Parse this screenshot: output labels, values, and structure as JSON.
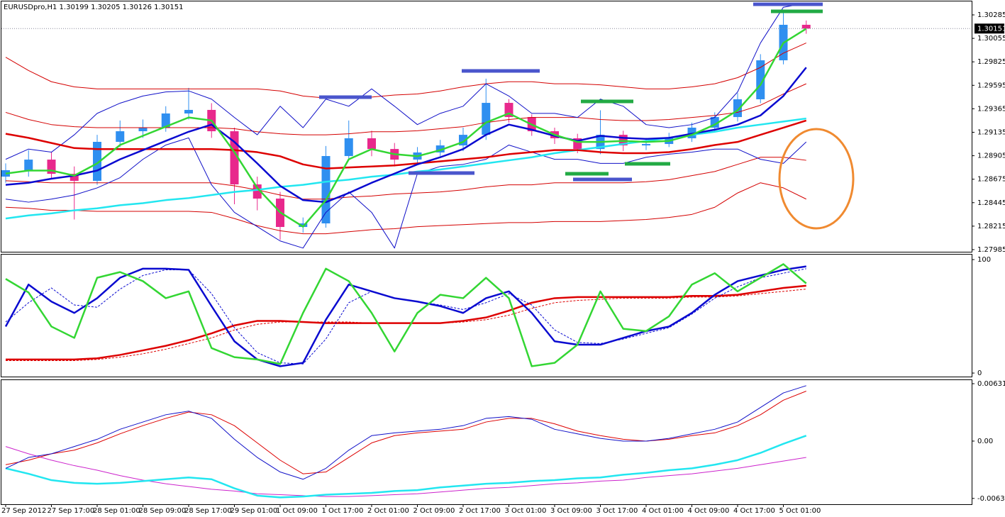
{
  "chart_data": [
    {
      "type": "candlestick",
      "title": "EURUSDpro,H1  1.30199 1.30205 1.30126 1.30151",
      "last_price": 1.30151,
      "categories": [
        "27 Sep 2012",
        null,
        "27 Sep 17:00",
        null,
        "28 Sep 01:00",
        null,
        "28 Sep 09:00",
        null,
        "28 Sep 17:00",
        null,
        "29 Sep 01:00",
        null,
        "1 Oct 09:00",
        null,
        "1 Oct 17:00",
        null,
        "2 Oct 01:00",
        null,
        "2 Oct 09:00",
        null,
        "2 Oct 17:00",
        null,
        "3 Oct 01:00",
        null,
        "3 Oct 09:00",
        null,
        "3 Oct 17:00",
        null,
        "4 Oct 01:00",
        null,
        "4 Oct 09:00",
        null,
        "4 Oct 17:00",
        null,
        "5 Oct 01:00",
        null
      ],
      "open": [
        1.287,
        1.28763,
        1.28867,
        1.28728,
        1.28659,
        1.29041,
        1.29145,
        1.2918,
        1.29319,
        1.29354,
        1.29145,
        1.28624,
        1.28485,
        1.28207,
        1.28242,
        1.28902,
        1.29076,
        1.28971,
        1.28867,
        1.28937,
        1.29006,
        1.2911,
        1.29423,
        1.29284,
        1.29145,
        1.29076,
        1.28971,
        1.2911,
        1.29006,
        1.2902,
        1.29076,
        1.2918,
        1.29284,
        1.29458,
        1.2984,
        1.30188
      ],
      "high": [
        1.2883,
        1.2896,
        1.2894,
        1.288,
        1.2911,
        1.2925,
        1.2926,
        1.2939,
        1.2957,
        1.2942,
        1.2918,
        1.287,
        1.2855,
        1.283,
        1.29,
        1.2925,
        1.2915,
        1.2903,
        1.2899,
        1.2906,
        1.2918,
        1.2966,
        1.2946,
        1.2931,
        1.2918,
        1.2912,
        1.2935,
        1.2915,
        1.2908,
        1.2913,
        1.2923,
        1.2933,
        1.2952,
        1.299,
        1.3033,
        1.3023
      ],
      "low": [
        1.2864,
        1.287,
        1.2868,
        1.2828,
        1.2862,
        1.2899,
        1.2908,
        1.2914,
        1.2926,
        1.2908,
        1.2843,
        1.2837,
        1.2808,
        1.2815,
        1.282,
        1.2886,
        1.289,
        1.288,
        1.2883,
        1.289,
        1.2895,
        1.2906,
        1.2923,
        1.291,
        1.2902,
        1.2893,
        1.2892,
        1.2895,
        1.2896,
        1.2899,
        1.2904,
        1.2914,
        1.2924,
        1.2942,
        1.298,
        1.301
      ],
      "close": [
        1.28763,
        1.28867,
        1.28728,
        1.28659,
        1.29041,
        1.29145,
        1.2918,
        1.29319,
        1.29354,
        1.29145,
        1.28624,
        1.28485,
        1.28207,
        1.28242,
        1.28902,
        1.29076,
        1.28971,
        1.28867,
        1.28937,
        1.29006,
        1.2911,
        1.29423,
        1.29284,
        1.29145,
        1.29076,
        1.28971,
        1.2911,
        1.29006,
        1.2902,
        1.29076,
        1.2918,
        1.29284,
        1.29458,
        1.2984,
        1.30188,
        1.30151
      ],
      "up_color": "#2f8ff0",
      "down_color": "#e8288c",
      "ylim": [
        1.27964,
        1.30417
      ],
      "yticks": [
        1.27985,
        1.28215,
        1.28445,
        1.28675,
        1.28905,
        1.29135,
        1.29365,
        1.29595,
        1.29825,
        1.30055,
        1.30285
      ],
      "series": [
        {
          "color": "#d40000",
          "style": "thin",
          "values": [
            1.2987,
            1.2974,
            1.2963,
            1.2958,
            1.2956,
            1.2956,
            1.2956,
            1.2956,
            1.2956,
            1.2956,
            1.2956,
            1.2956,
            1.2954,
            1.2949,
            1.2947,
            1.2947,
            1.2948,
            1.295,
            1.2951,
            1.2954,
            1.2958,
            1.2961,
            1.2963,
            1.2963,
            1.2961,
            1.2961,
            1.296,
            1.2958,
            1.2956,
            1.2956,
            1.2958,
            1.2961,
            1.2967,
            1.2977,
            1.2991,
            1.3001
          ]
        },
        {
          "color": "#d40000",
          "style": "thin",
          "values": [
            1.2933,
            1.2926,
            1.2921,
            1.2919,
            1.2918,
            1.2918,
            1.2918,
            1.2918,
            1.2918,
            1.2918,
            1.2917,
            1.2914,
            1.2912,
            1.2911,
            1.2911,
            1.2912,
            1.2914,
            1.2914,
            1.2915,
            1.2917,
            1.2919,
            1.2923,
            1.2926,
            1.2928,
            1.2928,
            1.2928,
            1.2926,
            1.2925,
            1.2925,
            1.2926,
            1.2928,
            1.293,
            1.2933,
            1.294,
            1.2951,
            1.2961
          ]
        },
        {
          "color": "#d40000",
          "style": "thin",
          "values": [
            1.2866,
            1.2865,
            1.2864,
            1.2864,
            1.2864,
            1.2864,
            1.2864,
            1.2864,
            1.2864,
            1.2864,
            1.2861,
            1.2857,
            1.2852,
            1.2848,
            1.2848,
            1.285,
            1.2851,
            1.2853,
            1.2854,
            1.2855,
            1.2857,
            1.286,
            1.2862,
            1.2862,
            1.2864,
            1.2864,
            1.2864,
            1.2864,
            1.2865,
            1.2867,
            1.2871,
            1.2875,
            1.2882,
            1.2889,
            1.2889,
            1.2886
          ]
        },
        {
          "color": "#d40000",
          "style": "thin",
          "values": [
            1.284,
            1.2839,
            1.2837,
            1.2837,
            1.2836,
            1.2836,
            1.2836,
            1.2836,
            1.2836,
            1.2835,
            1.2829,
            1.2822,
            1.2817,
            1.2814,
            1.2814,
            1.2816,
            1.2818,
            1.2819,
            1.2821,
            1.2822,
            1.2823,
            1.2824,
            1.2825,
            1.2825,
            1.2826,
            1.2826,
            1.2826,
            1.2827,
            1.2828,
            1.283,
            1.2833,
            1.284,
            1.2854,
            1.2864,
            1.2859,
            1.2848
          ]
        },
        {
          "color": "#1010c8",
          "style": "thin",
          "values": [
            1.2887,
            1.2897,
            1.2894,
            1.2911,
            1.2932,
            1.2942,
            1.2949,
            1.2953,
            1.2954,
            1.2946,
            1.2928,
            1.2911,
            1.2939,
            1.2918,
            1.2946,
            1.2939,
            1.2956,
            1.2939,
            1.2921,
            1.2932,
            1.2939,
            1.2961,
            1.2949,
            1.2932,
            1.2932,
            1.2928,
            1.2946,
            1.2939,
            1.2921,
            1.2918,
            1.2921,
            1.2928,
            1.2953,
            1.3001,
            1.3036,
            1.304
          ]
        },
        {
          "color": "#1010c8",
          "style": "thin",
          "values": [
            1.2848,
            1.2845,
            1.2848,
            1.2852,
            1.2859,
            1.2869,
            1.2887,
            1.2901,
            1.2908,
            1.2862,
            1.2835,
            1.2821,
            1.2807,
            1.28,
            1.2835,
            1.2855,
            1.2835,
            1.28,
            1.2873,
            1.288,
            1.2882,
            1.2887,
            1.2901,
            1.2894,
            1.2887,
            1.2887,
            1.2883,
            1.2883,
            1.2889,
            1.2892,
            1.2894,
            1.2897,
            1.2897,
            1.2887,
            1.2883,
            1.2904
          ]
        },
        {
          "color": "#22e6f0",
          "style": "thick",
          "values": [
            1.2829,
            1.2832,
            1.2834,
            1.2837,
            1.2839,
            1.2842,
            1.2844,
            1.2847,
            1.2849,
            1.2852,
            1.2855,
            1.2857,
            1.286,
            1.2862,
            1.2865,
            1.2867,
            1.287,
            1.2872,
            1.2875,
            1.2877,
            1.288,
            1.2883,
            1.2886,
            1.2889,
            1.2893,
            1.2896,
            1.2899,
            1.2902,
            1.2905,
            1.2908,
            1.2911,
            1.2914,
            1.2918,
            1.2921,
            1.2924,
            1.2927
          ]
        },
        {
          "color": "#dd0000",
          "style": "thick",
          "values": [
            1.2912,
            1.2908,
            1.2903,
            1.2898,
            1.2897,
            1.2897,
            1.2897,
            1.2897,
            1.2897,
            1.2897,
            1.2896,
            1.2894,
            1.289,
            1.2882,
            1.2878,
            1.2879,
            1.288,
            1.2881,
            1.2883,
            1.2885,
            1.2887,
            1.2889,
            1.2892,
            1.2894,
            1.2896,
            1.2896,
            1.2894,
            1.2893,
            1.2893,
            1.2894,
            1.2897,
            1.2901,
            1.2904,
            1.2911,
            1.2918,
            1.2925
          ]
        },
        {
          "color": "#0a0ad0",
          "style": "thick",
          "values": [
            1.2862,
            1.2864,
            1.2868,
            1.2871,
            1.2876,
            1.2887,
            1.2896,
            1.2905,
            1.2914,
            1.2921,
            1.2904,
            1.2883,
            1.2861,
            1.2847,
            1.2845,
            1.2854,
            1.2864,
            1.2873,
            1.2882,
            1.2889,
            1.2897,
            1.2911,
            1.2921,
            1.2916,
            1.291,
            1.2905,
            1.291,
            1.2908,
            1.2907,
            1.2908,
            1.2912,
            1.2916,
            1.2921,
            1.293,
            1.2949,
            1.2977
          ]
        },
        {
          "color": "#33d633",
          "style": "thick",
          "values": [
            1.2873,
            1.2876,
            1.2876,
            1.2871,
            1.2883,
            1.2901,
            1.291,
            1.2919,
            1.2928,
            1.2925,
            1.2894,
            1.2859,
            1.2835,
            1.2821,
            1.2847,
            1.2887,
            1.2897,
            1.2892,
            1.289,
            1.2896,
            1.2904,
            1.2923,
            1.2932,
            1.2921,
            1.2911,
            1.2904,
            1.2904,
            1.2905,
            1.2904,
            1.2905,
            1.2911,
            1.2921,
            1.2935,
            1.296,
            1.3001,
            1.3015
          ]
        }
      ]
    },
    {
      "type": "line",
      "ylim": [
        -3.1,
        104.4
      ],
      "yticks": [
        0,
        100
      ],
      "series": [
        {
          "color": "#dd0000",
          "style": "dashed",
          "values": [
            11,
            11,
            11,
            11,
            12,
            14,
            17,
            21,
            26,
            31,
            38,
            43,
            45,
            45,
            45,
            45,
            44,
            44,
            44,
            44,
            45,
            47,
            51,
            57,
            62,
            64,
            65,
            66,
            66,
            66,
            67,
            67,
            68,
            70,
            72,
            74
          ]
        },
        {
          "color": "#dd0000",
          "style": "thick",
          "values": [
            12,
            12,
            12,
            12,
            13,
            16,
            20,
            24,
            29,
            35,
            42,
            46,
            46,
            45,
            44,
            44,
            44,
            44,
            44,
            44,
            46,
            49,
            55,
            62,
            66,
            67,
            67,
            67,
            67,
            67,
            68,
            68,
            69,
            72,
            75,
            77
          ]
        },
        {
          "color": "#0a0ad0",
          "style": "dashed",
          "values": [
            45,
            62,
            75,
            60,
            58,
            74,
            86,
            91,
            91,
            70,
            40,
            18,
            9,
            8,
            30,
            62,
            72,
            66,
            63,
            60,
            56,
            62,
            70,
            60,
            38,
            27,
            26,
            30,
            35,
            40,
            52,
            66,
            76,
            84,
            88,
            92
          ]
        },
        {
          "color": "#0a0ad0",
          "style": "thick",
          "values": [
            41,
            78,
            63,
            53,
            66,
            84,
            92,
            92,
            91,
            59,
            28,
            12,
            6,
            9,
            47,
            78,
            72,
            66,
            63,
            59,
            53,
            66,
            72,
            53,
            28,
            25,
            25,
            31,
            37,
            41,
            53,
            69,
            81,
            86,
            91,
            94
          ]
        },
        {
          "color": "#33d633",
          "style": "thick",
          "values": [
            83,
            71,
            41,
            31,
            84,
            89,
            81,
            66,
            72,
            22,
            14,
            12,
            8,
            53,
            92,
            81,
            53,
            19,
            53,
            69,
            66,
            84,
            66,
            6,
            9,
            25,
            72,
            39,
            37,
            50,
            78,
            88,
            72,
            84,
            96,
            79
          ]
        }
      ]
    },
    {
      "type": "line",
      "ylim": [
        -0.00695,
        0.00671
      ],
      "yticks": [
        -0.00631,
        {
          "value": 0,
          "label": "0.00"
        },
        0.006317
      ],
      "series": [
        {
          "color": "#cc22cc",
          "style": "thin",
          "values": [
            -0.0006,
            -0.0014,
            -0.0021,
            -0.0027,
            -0.0032,
            -0.0038,
            -0.0043,
            -0.0047,
            -0.005,
            -0.0053,
            -0.0055,
            -0.0058,
            -0.0059,
            -0.006,
            -0.0061,
            -0.0061,
            -0.006,
            -0.0059,
            -0.0058,
            -0.0056,
            -0.0054,
            -0.0052,
            -0.0051,
            -0.0049,
            -0.0047,
            -0.0046,
            -0.0044,
            -0.0043,
            -0.004,
            -0.0038,
            -0.0036,
            -0.0033,
            -0.003,
            -0.0026,
            -0.0022,
            -0.0018
          ]
        },
        {
          "color": "#22e6f0",
          "style": "thick",
          "values": [
            -0.003,
            -0.0036,
            -0.0043,
            -0.0046,
            -0.0047,
            -0.0046,
            -0.0044,
            -0.0042,
            -0.004,
            -0.0042,
            -0.0052,
            -0.006,
            -0.0062,
            -0.0061,
            -0.0059,
            -0.0058,
            -0.0057,
            -0.0055,
            -0.0054,
            -0.0051,
            -0.0049,
            -0.0047,
            -0.0046,
            -0.0044,
            -0.0043,
            -0.0041,
            -0.004,
            -0.0037,
            -0.0035,
            -0.0032,
            -0.003,
            -0.0026,
            -0.0021,
            -0.0013,
            -0.0003,
            0.0006
          ]
        },
        {
          "color": "#dd0000",
          "style": "thin",
          "values": [
            -0.0026,
            -0.0021,
            -0.0014,
            -0.001,
            -0.0002,
            0.0008,
            0.0017,
            0.0025,
            0.0032,
            0.0029,
            0.0017,
            -0.0002,
            -0.0021,
            -0.0036,
            -0.0034,
            -0.0018,
            -0.0002,
            0.0006,
            0.0009,
            0.0011,
            0.0013,
            0.0021,
            0.0025,
            0.0025,
            0.0019,
            0.0011,
            0.0006,
            0.0002,
            0.0,
            0.0002,
            0.0006,
            0.0009,
            0.0017,
            0.0029,
            0.0045,
            0.0055
          ]
        },
        {
          "color": "#1010c8",
          "style": "thin",
          "values": [
            -0.003,
            -0.0018,
            -0.0014,
            -0.0006,
            0.0002,
            0.0013,
            0.0021,
            0.0029,
            0.0033,
            0.0025,
            0.0002,
            -0.0018,
            -0.0034,
            -0.0042,
            -0.003,
            -0.001,
            0.0006,
            0.0009,
            0.0011,
            0.0013,
            0.0017,
            0.0025,
            0.0027,
            0.0024,
            0.0013,
            0.0008,
            0.0003,
            0.0,
            0.0,
            0.0003,
            0.0008,
            0.0013,
            0.0021,
            0.0037,
            0.0053,
            0.0061
          ]
        }
      ]
    }
  ]
}
